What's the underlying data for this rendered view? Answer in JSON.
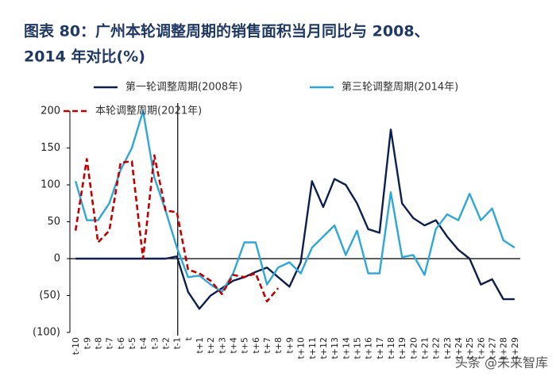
{
  "chart_data": {
    "type": "line",
    "title_lines": [
      "图表 80：广州本轮调整周期的销售面积当月同比与 2008、",
      "2014 年对比(%)"
    ],
    "categories": [
      "t-10",
      "t-9",
      "t-8",
      "t-7",
      "t-6",
      "t-5",
      "t-4",
      "t-3",
      "t-2",
      "t-1",
      "t",
      "t+1",
      "t+2",
      "t+3",
      "t+4",
      "t+5",
      "t+6",
      "t+7",
      "t+8",
      "t+9",
      "t+10",
      "t+11",
      "t+12",
      "t+13",
      "t+14",
      "t+15",
      "t+16",
      "t+17",
      "t+18",
      "t+19",
      "t+20",
      "t+21",
      "t+22",
      "t+23",
      "t+24",
      "t+25",
      "t+26",
      "t+27",
      "t+28",
      "t+29"
    ],
    "series": [
      {
        "name": "第一轮调整周期(2008年)",
        "color": "#0d1f4f",
        "dash": false,
        "values": [
          0,
          0,
          0,
          0,
          0,
          0,
          0,
          0,
          0,
          3,
          -45,
          -68,
          -50,
          -40,
          -30,
          -25,
          -18,
          -12,
          -25,
          -38,
          -5,
          105,
          70,
          108,
          100,
          75,
          40,
          35,
          175,
          75,
          55,
          45,
          52,
          30,
          12,
          0,
          -35,
          -28,
          -55,
          -55
        ]
      },
      {
        "name": "第三轮调整周期(2014年)",
        "color": "#2ea7d8",
        "dash": false,
        "values": [
          105,
          52,
          52,
          75,
          120,
          150,
          200,
          110,
          65,
          15,
          -25,
          -23,
          -35,
          -45,
          -20,
          22,
          22,
          -35,
          -12,
          -5,
          -20,
          15,
          30,
          45,
          5,
          38,
          -20,
          -20,
          90,
          2,
          5,
          -22,
          40,
          60,
          52,
          88,
          52,
          68,
          25,
          15
        ]
      },
      {
        "name": "本轮调整周期(2021年)",
        "color": "#c00000",
        "dash": true,
        "values": [
          38,
          135,
          22,
          38,
          130,
          132,
          0,
          140,
          65,
          63,
          -15,
          -20,
          -30,
          -48,
          -22,
          -25,
          -20,
          -58,
          -40,
          null,
          null,
          null,
          null,
          null,
          null,
          null,
          null,
          null,
          null,
          null,
          null,
          null,
          null,
          null,
          null,
          null,
          null,
          null,
          null,
          null
        ]
      }
    ],
    "ylim": [
      -100,
      200
    ],
    "yticks": [
      200,
      150,
      100,
      50,
      0,
      {
        "value": -50,
        "label": "(50)"
      },
      {
        "value": -100,
        "label": "(100)"
      }
    ],
    "negative_tick_color": "#c00000",
    "watermark": "头条 @未来智库"
  }
}
